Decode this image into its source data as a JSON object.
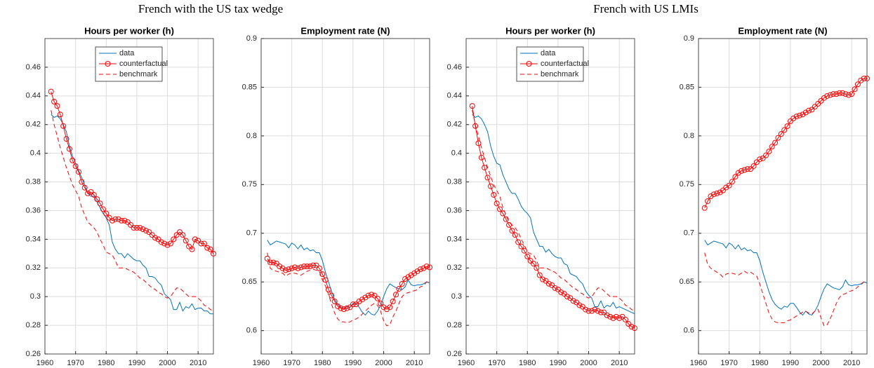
{
  "figure_titles": [
    "French with the US tax wedge",
    "French with US LMIs"
  ],
  "chart_data": [
    {
      "type": "line",
      "title": "Hours per worker (h)",
      "legend": "upper right",
      "grid": true,
      "x": [
        1962,
        1963,
        1964,
        1965,
        1966,
        1967,
        1968,
        1969,
        1970,
        1971,
        1972,
        1973,
        1974,
        1975,
        1976,
        1977,
        1978,
        1979,
        1980,
        1981,
        1982,
        1983,
        1984,
        1985,
        1986,
        1987,
        1988,
        1989,
        1990,
        1991,
        1992,
        1993,
        1994,
        1995,
        1996,
        1997,
        1998,
        1999,
        2000,
        2001,
        2002,
        2003,
        2004,
        2005,
        2006,
        2007,
        2008,
        2009,
        2010,
        2011,
        2012,
        2013,
        2014,
        2015
      ],
      "xlim": [
        1960,
        2015
      ],
      "xticks": [
        1960,
        1970,
        1980,
        1990,
        2000,
        2010
      ],
      "ylim": [
        0.26,
        0.48
      ],
      "yticks": [
        0.26,
        0.28,
        0.3,
        0.32,
        0.34,
        0.36,
        0.38,
        0.4,
        0.42,
        0.44,
        0.46
      ],
      "series": [
        {
          "name": "data",
          "color": "#0072bd",
          "values": [
            0.427,
            0.425,
            0.426,
            0.424,
            0.42,
            0.415,
            0.405,
            0.398,
            0.393,
            0.388,
            0.383,
            0.378,
            0.372,
            0.37,
            0.37,
            0.366,
            0.362,
            0.358,
            0.355,
            0.35,
            0.338,
            0.333,
            0.33,
            0.33,
            0.327,
            0.33,
            0.328,
            0.326,
            0.325,
            0.325,
            0.322,
            0.32,
            0.314,
            0.314,
            0.313,
            0.31,
            0.308,
            0.302,
            0.3,
            0.298,
            0.291,
            0.291,
            0.296,
            0.29,
            0.293,
            0.292,
            0.295,
            0.291,
            0.292,
            0.292,
            0.29,
            0.29,
            0.288,
            0.288
          ]
        },
        {
          "name": "counterfactual",
          "color": "#ff0000",
          "marker": "o",
          "values": [
            0.443,
            0.436,
            0.433,
            0.427,
            0.419,
            0.41,
            0.403,
            0.395,
            0.391,
            0.387,
            0.38,
            0.376,
            0.372,
            0.373,
            0.371,
            0.368,
            0.365,
            0.361,
            0.358,
            0.355,
            0.353,
            0.354,
            0.354,
            0.353,
            0.353,
            0.352,
            0.35,
            0.348,
            0.348,
            0.348,
            0.347,
            0.346,
            0.345,
            0.343,
            0.341,
            0.34,
            0.338,
            0.337,
            0.336,
            0.337,
            0.34,
            0.343,
            0.345,
            0.343,
            0.339,
            0.335,
            0.333,
            0.34,
            0.339,
            0.337,
            0.337,
            0.334,
            0.333,
            0.33
          ]
        },
        {
          "name": "benchmark",
          "color": "#ff0000",
          "dashed": true,
          "values": [
            0.43,
            0.42,
            0.412,
            0.404,
            0.397,
            0.39,
            0.384,
            0.378,
            0.374,
            0.37,
            0.362,
            0.357,
            0.352,
            0.35,
            0.348,
            0.345,
            0.34,
            0.336,
            0.331,
            0.33,
            0.329,
            0.325,
            0.32,
            0.32,
            0.32,
            0.319,
            0.318,
            0.317,
            0.315,
            0.313,
            0.312,
            0.31,
            0.308,
            0.306,
            0.305,
            0.303,
            0.302,
            0.3,
            0.299,
            0.3,
            0.303,
            0.306,
            0.306,
            0.304,
            0.302,
            0.3,
            0.3,
            0.3,
            0.299,
            0.297,
            0.294,
            0.293,
            0.291,
            0.29
          ]
        }
      ]
    },
    {
      "type": "line",
      "title": "Employment rate (N)",
      "grid": true,
      "x": [
        1962,
        1963,
        1964,
        1965,
        1966,
        1967,
        1968,
        1969,
        1970,
        1971,
        1972,
        1973,
        1974,
        1975,
        1976,
        1977,
        1978,
        1979,
        1980,
        1981,
        1982,
        1983,
        1984,
        1985,
        1986,
        1987,
        1988,
        1989,
        1990,
        1991,
        1992,
        1993,
        1994,
        1995,
        1996,
        1997,
        1998,
        1999,
        2000,
        2001,
        2002,
        2003,
        2004,
        2005,
        2006,
        2007,
        2008,
        2009,
        2010,
        2011,
        2012,
        2013,
        2014,
        2015
      ],
      "xlim": [
        1960,
        2015
      ],
      "xticks": [
        1960,
        1970,
        1980,
        1990,
        2000,
        2010
      ],
      "ylim": [
        0.576,
        0.9
      ],
      "yticks": [
        0.6,
        0.65,
        0.7,
        0.75,
        0.8,
        0.85,
        0.9
      ],
      "series": [
        {
          "color": "#0072bd",
          "values": [
            0.693,
            0.688,
            0.69,
            0.692,
            0.691,
            0.69,
            0.689,
            0.685,
            0.69,
            0.688,
            0.684,
            0.688,
            0.683,
            0.685,
            0.682,
            0.683,
            0.68,
            0.68,
            0.672,
            0.66,
            0.65,
            0.64,
            0.632,
            0.627,
            0.624,
            0.622,
            0.625,
            0.624,
            0.628,
            0.628,
            0.624,
            0.619,
            0.616,
            0.62,
            0.617,
            0.616,
            0.62,
            0.626,
            0.635,
            0.643,
            0.648,
            0.646,
            0.644,
            0.643,
            0.642,
            0.645,
            0.652,
            0.647,
            0.646,
            0.647,
            0.647,
            0.648,
            0.65,
            0.649
          ]
        },
        {
          "color": "#ff0000",
          "marker": "o",
          "values": [
            0.674,
            0.67,
            0.67,
            0.669,
            0.666,
            0.664,
            0.662,
            0.663,
            0.664,
            0.665,
            0.664,
            0.665,
            0.666,
            0.666,
            0.666,
            0.667,
            0.667,
            0.664,
            0.658,
            0.652,
            0.642,
            0.636,
            0.63,
            0.625,
            0.623,
            0.622,
            0.623,
            0.624,
            0.627,
            0.627,
            0.63,
            0.632,
            0.634,
            0.636,
            0.637,
            0.636,
            0.633,
            0.628,
            0.624,
            0.622,
            0.624,
            0.63,
            0.637,
            0.643,
            0.648,
            0.653,
            0.655,
            0.657,
            0.659,
            0.661,
            0.663,
            0.664,
            0.666,
            0.665
          ]
        },
        {
          "color": "#ff0000",
          "dashed": true,
          "values": [
            0.68,
            0.664,
            0.662,
            0.661,
            0.66,
            0.659,
            0.656,
            0.658,
            0.659,
            0.659,
            0.658,
            0.657,
            0.659,
            0.661,
            0.662,
            0.663,
            0.662,
            0.661,
            0.652,
            0.646,
            0.637,
            0.627,
            0.618,
            0.612,
            0.609,
            0.609,
            0.608,
            0.609,
            0.611,
            0.612,
            0.614,
            0.617,
            0.62,
            0.623,
            0.626,
            0.628,
            0.626,
            0.62,
            0.61,
            0.605,
            0.606,
            0.614,
            0.62,
            0.628,
            0.635,
            0.638,
            0.639,
            0.64,
            0.641,
            0.642,
            0.645,
            0.646,
            0.65,
            0.65
          ]
        }
      ]
    },
    {
      "type": "line",
      "title": "Hours per worker (h)",
      "legend": "upper right",
      "grid": true,
      "x": [
        1962,
        1963,
        1964,
        1965,
        1966,
        1967,
        1968,
        1969,
        1970,
        1971,
        1972,
        1973,
        1974,
        1975,
        1976,
        1977,
        1978,
        1979,
        1980,
        1981,
        1982,
        1983,
        1984,
        1985,
        1986,
        1987,
        1988,
        1989,
        1990,
        1991,
        1992,
        1993,
        1994,
        1995,
        1996,
        1997,
        1998,
        1999,
        2000,
        2001,
        2002,
        2003,
        2004,
        2005,
        2006,
        2007,
        2008,
        2009,
        2010,
        2011,
        2012,
        2013,
        2014,
        2015
      ],
      "xlim": [
        1960,
        2015
      ],
      "xticks": [
        1960,
        1970,
        1980,
        1990,
        2000,
        2010
      ],
      "ylim": [
        0.26,
        0.48
      ],
      "yticks": [
        0.26,
        0.28,
        0.3,
        0.32,
        0.34,
        0.36,
        0.38,
        0.4,
        0.42,
        0.44,
        0.46
      ],
      "series": [
        {
          "name": "data",
          "color": "#0072bd",
          "values": [
            0.427,
            0.425,
            0.426,
            0.424,
            0.42,
            0.415,
            0.405,
            0.398,
            0.393,
            0.392,
            0.385,
            0.38,
            0.375,
            0.372,
            0.372,
            0.368,
            0.363,
            0.36,
            0.358,
            0.355,
            0.345,
            0.34,
            0.335,
            0.335,
            0.331,
            0.333,
            0.33,
            0.328,
            0.327,
            0.327,
            0.323,
            0.322,
            0.316,
            0.315,
            0.314,
            0.311,
            0.309,
            0.304,
            0.301,
            0.299,
            0.293,
            0.293,
            0.297,
            0.292,
            0.294,
            0.293,
            0.296,
            0.292,
            0.293,
            0.292,
            0.291,
            0.29,
            0.289,
            0.288
          ]
        },
        {
          "name": "counterfactual",
          "color": "#ff0000",
          "marker": "o",
          "values": [
            0.433,
            0.419,
            0.407,
            0.397,
            0.39,
            0.383,
            0.377,
            0.371,
            0.365,
            0.361,
            0.358,
            0.354,
            0.35,
            0.346,
            0.343,
            0.338,
            0.335,
            0.332,
            0.328,
            0.325,
            0.323,
            0.32,
            0.315,
            0.312,
            0.311,
            0.309,
            0.308,
            0.306,
            0.305,
            0.303,
            0.302,
            0.3,
            0.299,
            0.297,
            0.296,
            0.294,
            0.293,
            0.291,
            0.29,
            0.29,
            0.291,
            0.29,
            0.289,
            0.289,
            0.287,
            0.286,
            0.285,
            0.286,
            0.285,
            0.286,
            0.284,
            0.281,
            0.279,
            0.278
          ]
        },
        {
          "name": "benchmark",
          "color": "#ff0000",
          "dashed": true,
          "values": [
            0.43,
            0.42,
            0.412,
            0.404,
            0.397,
            0.39,
            0.384,
            0.378,
            0.374,
            0.37,
            0.362,
            0.357,
            0.352,
            0.35,
            0.348,
            0.345,
            0.34,
            0.336,
            0.331,
            0.33,
            0.329,
            0.325,
            0.32,
            0.32,
            0.32,
            0.319,
            0.318,
            0.317,
            0.315,
            0.313,
            0.312,
            0.31,
            0.308,
            0.306,
            0.305,
            0.303,
            0.302,
            0.3,
            0.299,
            0.3,
            0.303,
            0.306,
            0.306,
            0.304,
            0.302,
            0.3,
            0.3,
            0.3,
            0.299,
            0.297,
            0.294,
            0.293,
            0.291,
            0.29
          ]
        }
      ]
    },
    {
      "type": "line",
      "title": "Employment rate (N)",
      "grid": true,
      "x": [
        1962,
        1963,
        1964,
        1965,
        1966,
        1967,
        1968,
        1969,
        1970,
        1971,
        1972,
        1973,
        1974,
        1975,
        1976,
        1977,
        1978,
        1979,
        1980,
        1981,
        1982,
        1983,
        1984,
        1985,
        1986,
        1987,
        1988,
        1989,
        1990,
        1991,
        1992,
        1993,
        1994,
        1995,
        1996,
        1997,
        1998,
        1999,
        2000,
        2001,
        2002,
        2003,
        2004,
        2005,
        2006,
        2007,
        2008,
        2009,
        2010,
        2011,
        2012,
        2013,
        2014,
        2015
      ],
      "xlim": [
        1960,
        2015
      ],
      "xticks": [
        1960,
        1970,
        1980,
        1990,
        2000,
        2010
      ],
      "ylim": [
        0.576,
        0.9
      ],
      "yticks": [
        0.6,
        0.65,
        0.7,
        0.75,
        0.8,
        0.85,
        0.9
      ],
      "series": [
        {
          "color": "#0072bd",
          "values": [
            0.693,
            0.688,
            0.69,
            0.692,
            0.691,
            0.69,
            0.689,
            0.685,
            0.69,
            0.688,
            0.684,
            0.688,
            0.683,
            0.685,
            0.682,
            0.683,
            0.68,
            0.68,
            0.672,
            0.66,
            0.65,
            0.64,
            0.632,
            0.627,
            0.624,
            0.622,
            0.625,
            0.624,
            0.628,
            0.628,
            0.624,
            0.619,
            0.616,
            0.62,
            0.617,
            0.616,
            0.62,
            0.626,
            0.635,
            0.643,
            0.648,
            0.646,
            0.644,
            0.643,
            0.642,
            0.645,
            0.652,
            0.647,
            0.646,
            0.647,
            0.647,
            0.648,
            0.65,
            0.649
          ]
        },
        {
          "color": "#ff0000",
          "marker": "o",
          "values": [
            0.726,
            0.733,
            0.738,
            0.74,
            0.741,
            0.742,
            0.744,
            0.747,
            0.749,
            0.753,
            0.758,
            0.762,
            0.764,
            0.765,
            0.766,
            0.766,
            0.769,
            0.773,
            0.776,
            0.777,
            0.78,
            0.784,
            0.789,
            0.793,
            0.798,
            0.802,
            0.806,
            0.81,
            0.815,
            0.818,
            0.82,
            0.821,
            0.822,
            0.824,
            0.826,
            0.827,
            0.83,
            0.833,
            0.836,
            0.839,
            0.841,
            0.842,
            0.843,
            0.843,
            0.844,
            0.844,
            0.843,
            0.842,
            0.843,
            0.848,
            0.853,
            0.857,
            0.859,
            0.859
          ]
        },
        {
          "color": "#ff0000",
          "dashed": true,
          "values": [
            0.68,
            0.668,
            0.664,
            0.662,
            0.66,
            0.658,
            0.655,
            0.658,
            0.659,
            0.659,
            0.658,
            0.657,
            0.659,
            0.661,
            0.659,
            0.66,
            0.658,
            0.656,
            0.648,
            0.638,
            0.628,
            0.618,
            0.612,
            0.609,
            0.608,
            0.608,
            0.608,
            0.61,
            0.611,
            0.613,
            0.615,
            0.617,
            0.619,
            0.62,
            0.618,
            0.617,
            0.62,
            0.622,
            0.613,
            0.605,
            0.606,
            0.612,
            0.62,
            0.628,
            0.634,
            0.637,
            0.638,
            0.64,
            0.641,
            0.642,
            0.645,
            0.647,
            0.65,
            0.65
          ]
        }
      ]
    }
  ]
}
